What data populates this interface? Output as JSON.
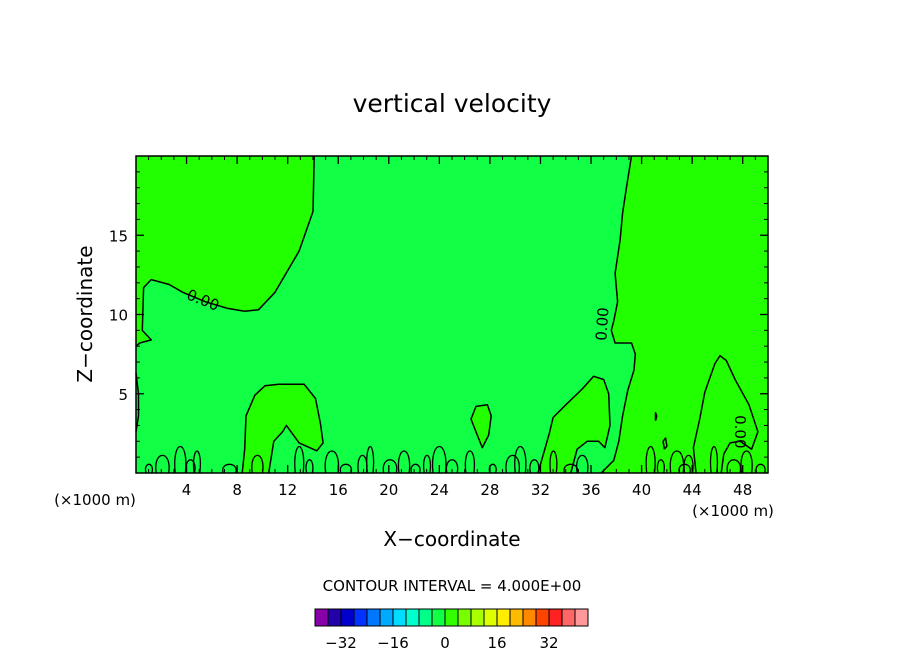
{
  "chart_data": {
    "type": "contour",
    "title": "vertical velocity",
    "xlabel": "X−coordinate",
    "ylabel": "Z−coordinate",
    "x_unit_label": "(×1000 m)",
    "z_unit_label": "(×1000 m)",
    "xlim": [
      0,
      50
    ],
    "ylim": [
      0,
      20
    ],
    "x_ticks": [
      4,
      8,
      12,
      16,
      20,
      24,
      28,
      32,
      36,
      40,
      44,
      48
    ],
    "y_ticks": [
      5,
      10,
      15
    ],
    "contour_interval_text": "CONTOUR INTERVAL = 4.000E+00",
    "contour_labels": [
      "0.00",
      "0.00",
      "0.00"
    ],
    "colors": {
      "positive_fill": "#22ff00",
      "near_zero_fill": "#11ff44",
      "line": "#000000"
    },
    "colorbar": {
      "colors": [
        "#8800aa",
        "#2200aa",
        "#0000cc",
        "#0033ff",
        "#0077ff",
        "#00aaff",
        "#00ddff",
        "#00ffcc",
        "#00ff88",
        "#11ff44",
        "#33ff00",
        "#77ff00",
        "#aaff00",
        "#ddff00",
        "#ffee00",
        "#ffbb00",
        "#ff8800",
        "#ff4400",
        "#ff2222",
        "#ff6666",
        "#ff9999"
      ],
      "tick_labels": [
        "−32",
        "−16",
        "0",
        "16",
        "32"
      ]
    }
  }
}
